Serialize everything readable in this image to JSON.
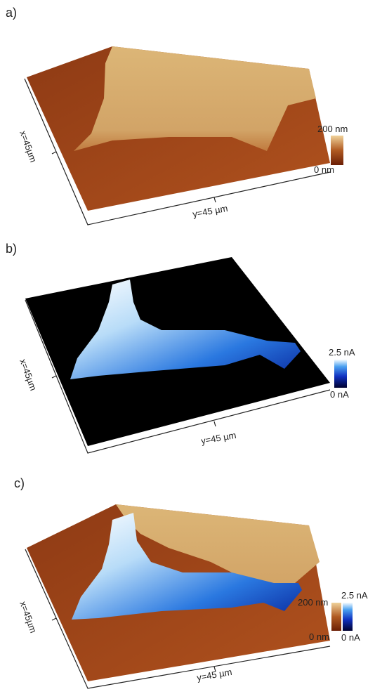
{
  "panels": [
    {
      "label": "a)",
      "x_axis": "x=45µm",
      "y_axis": "y=45 µm",
      "colorbars": [
        {
          "max": "200 nm",
          "min": "0 nm"
        }
      ]
    },
    {
      "label": "b)",
      "x_axis": "x=45µm",
      "y_axis": "y=45 µm",
      "colorbars": [
        {
          "max": "2.5 nA",
          "min": "0 nA"
        }
      ]
    },
    {
      "label": "c)",
      "x_axis": "x=45µm",
      "y_axis": "y=45 µm",
      "colorbars": [
        {
          "max": "200 nm",
          "min": "0 nm"
        },
        {
          "max": "2.5 nA",
          "min": "0 nA"
        }
      ]
    }
  ]
}
